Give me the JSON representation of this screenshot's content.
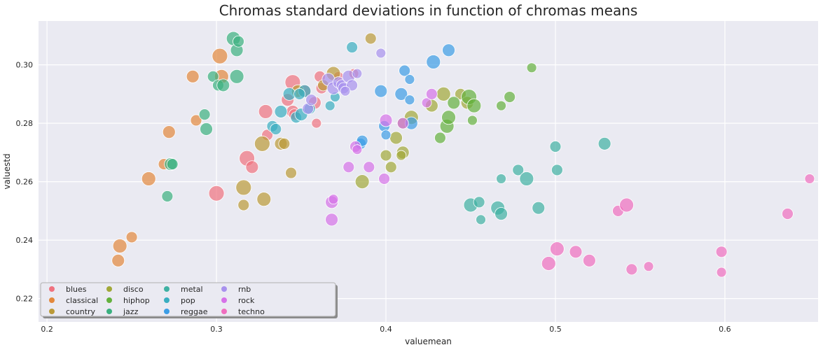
{
  "chart_data": {
    "type": "scatter",
    "title": "Chromas standard deviations in function of chromas means",
    "xlabel": "valuemean",
    "ylabel": "valuestd",
    "xlim": [
      0.195,
      0.655
    ],
    "ylim": [
      0.212,
      0.315
    ],
    "xticks": [
      0.2,
      0.3,
      0.4,
      0.5,
      0.6
    ],
    "yticks": [
      0.22,
      0.24,
      0.26,
      0.28,
      0.3
    ],
    "xtick_labels": [
      "0.2",
      "0.3",
      "0.4",
      "0.5",
      "0.6"
    ],
    "ytick_labels": [
      "0.22",
      "0.24",
      "0.26",
      "0.28",
      "0.30"
    ],
    "grid": true,
    "legend_position": "bottom-left",
    "legend_columns": 5,
    "series": [
      {
        "name": "blues",
        "color": "#f0727f",
        "points": [
          [
            0.3,
            0.256,
            11
          ],
          [
            0.318,
            0.268,
            11
          ],
          [
            0.321,
            0.265,
            9
          ],
          [
            0.329,
            0.284,
            10
          ],
          [
            0.33,
            0.276,
            8
          ],
          [
            0.342,
            0.288,
            9
          ],
          [
            0.345,
            0.294,
            11
          ],
          [
            0.345,
            0.284,
            9
          ],
          [
            0.352,
            0.291,
            9
          ],
          [
            0.358,
            0.287,
            9
          ],
          [
            0.359,
            0.28,
            7
          ],
          [
            0.361,
            0.296,
            8
          ],
          [
            0.362,
            0.292,
            8
          ],
          [
            0.381,
            0.297,
            7
          ],
          [
            0.372,
            0.296,
            7
          ],
          [
            0.346,
            0.283,
            8
          ]
        ]
      },
      {
        "name": "classical",
        "color": "#e3883c",
        "points": [
          [
            0.242,
            0.233,
            9
          ],
          [
            0.243,
            0.238,
            10
          ],
          [
            0.25,
            0.241,
            8
          ],
          [
            0.26,
            0.261,
            10
          ],
          [
            0.269,
            0.266,
            8
          ],
          [
            0.272,
            0.277,
            9
          ],
          [
            0.286,
            0.296,
            9
          ],
          [
            0.288,
            0.281,
            8
          ],
          [
            0.302,
            0.303,
            11
          ],
          [
            0.303,
            0.296,
            10
          ]
        ]
      },
      {
        "name": "country",
        "color": "#bb9a38",
        "points": [
          [
            0.316,
            0.258,
            11
          ],
          [
            0.316,
            0.252,
            8
          ],
          [
            0.327,
            0.273,
            11
          ],
          [
            0.328,
            0.254,
            10
          ],
          [
            0.338,
            0.273,
            9
          ],
          [
            0.344,
            0.263,
            8
          ],
          [
            0.348,
            0.291,
            9
          ],
          [
            0.363,
            0.293,
            8
          ],
          [
            0.391,
            0.309,
            8
          ],
          [
            0.369,
            0.297,
            10
          ],
          [
            0.34,
            0.273,
            8
          ]
        ]
      },
      {
        "name": "disco",
        "color": "#a1a838",
        "points": [
          [
            0.386,
            0.26,
            10
          ],
          [
            0.4,
            0.269,
            8
          ],
          [
            0.403,
            0.265,
            8
          ],
          [
            0.406,
            0.275,
            9
          ],
          [
            0.41,
            0.27,
            9
          ],
          [
            0.415,
            0.282,
            10
          ],
          [
            0.41,
            0.28,
            8
          ],
          [
            0.427,
            0.286,
            9
          ],
          [
            0.434,
            0.29,
            10
          ],
          [
            0.444,
            0.29,
            8
          ],
          [
            0.448,
            0.287,
            9
          ],
          [
            0.409,
            0.269,
            7
          ]
        ]
      },
      {
        "name": "hiphop",
        "color": "#64b13d",
        "points": [
          [
            0.432,
            0.275,
            8
          ],
          [
            0.436,
            0.279,
            10
          ],
          [
            0.437,
            0.282,
            10
          ],
          [
            0.44,
            0.287,
            9
          ],
          [
            0.449,
            0.289,
            11
          ],
          [
            0.452,
            0.286,
            10
          ],
          [
            0.451,
            0.281,
            7
          ],
          [
            0.468,
            0.286,
            7
          ],
          [
            0.473,
            0.289,
            8
          ],
          [
            0.486,
            0.299,
            7
          ]
        ]
      },
      {
        "name": "jazz",
        "color": "#3bb07f",
        "points": [
          [
            0.271,
            0.255,
            8
          ],
          [
            0.273,
            0.266,
            9
          ],
          [
            0.274,
            0.266,
            8
          ],
          [
            0.293,
            0.283,
            8
          ],
          [
            0.294,
            0.278,
            9
          ],
          [
            0.298,
            0.296,
            8
          ],
          [
            0.301,
            0.293,
            8
          ],
          [
            0.304,
            0.293,
            9
          ],
          [
            0.31,
            0.309,
            10
          ],
          [
            0.312,
            0.305,
            9
          ],
          [
            0.313,
            0.308,
            8
          ],
          [
            0.312,
            0.296,
            10
          ]
        ]
      },
      {
        "name": "metal",
        "color": "#3fb1a3",
        "points": [
          [
            0.45,
            0.252,
            10
          ],
          [
            0.455,
            0.253,
            8
          ],
          [
            0.456,
            0.247,
            7
          ],
          [
            0.466,
            0.251,
            10
          ],
          [
            0.468,
            0.261,
            7
          ],
          [
            0.468,
            0.249,
            9
          ],
          [
            0.478,
            0.264,
            8
          ],
          [
            0.483,
            0.261,
            10
          ],
          [
            0.49,
            0.251,
            9
          ],
          [
            0.5,
            0.272,
            8
          ],
          [
            0.501,
            0.264,
            8
          ],
          [
            0.529,
            0.273,
            9
          ]
        ]
      },
      {
        "name": "pop",
        "color": "#39aec0",
        "points": [
          [
            0.333,
            0.279,
            8
          ],
          [
            0.335,
            0.278,
            8
          ],
          [
            0.338,
            0.284,
            9
          ],
          [
            0.343,
            0.29,
            9
          ],
          [
            0.347,
            0.282,
            8
          ],
          [
            0.35,
            0.283,
            9
          ],
          [
            0.352,
            0.291,
            9
          ],
          [
            0.355,
            0.285,
            8
          ],
          [
            0.367,
            0.286,
            7
          ],
          [
            0.37,
            0.289,
            7
          ],
          [
            0.38,
            0.306,
            8
          ],
          [
            0.349,
            0.29,
            8
          ]
        ]
      },
      {
        "name": "reggae",
        "color": "#3c9de5",
        "points": [
          [
            0.385,
            0.273,
            8
          ],
          [
            0.386,
            0.274,
            8
          ],
          [
            0.397,
            0.291,
            9
          ],
          [
            0.399,
            0.279,
            8
          ],
          [
            0.4,
            0.276,
            7
          ],
          [
            0.409,
            0.29,
            9
          ],
          [
            0.411,
            0.298,
            8
          ],
          [
            0.414,
            0.295,
            7
          ],
          [
            0.414,
            0.288,
            7
          ],
          [
            0.415,
            0.28,
            9
          ],
          [
            0.428,
            0.301,
            10
          ],
          [
            0.437,
            0.305,
            9
          ]
        ]
      },
      {
        "name": "rnb",
        "color": "#a891ee",
        "points": [
          [
            0.354,
            0.285,
            8
          ],
          [
            0.356,
            0.288,
            8
          ],
          [
            0.366,
            0.295,
            9
          ],
          [
            0.369,
            0.292,
            9
          ],
          [
            0.372,
            0.294,
            8
          ],
          [
            0.374,
            0.293,
            8
          ],
          [
            0.375,
            0.292,
            8
          ],
          [
            0.378,
            0.296,
            9
          ],
          [
            0.38,
            0.293,
            8
          ],
          [
            0.383,
            0.297,
            7
          ],
          [
            0.397,
            0.304,
            7
          ],
          [
            0.376,
            0.291,
            7
          ]
        ]
      },
      {
        "name": "rock",
        "color": "#d672e8",
        "points": [
          [
            0.368,
            0.253,
            9
          ],
          [
            0.369,
            0.254,
            7
          ],
          [
            0.368,
            0.247,
            9
          ],
          [
            0.378,
            0.265,
            8
          ],
          [
            0.382,
            0.272,
            8
          ],
          [
            0.383,
            0.271,
            7
          ],
          [
            0.39,
            0.265,
            8
          ],
          [
            0.399,
            0.261,
            8
          ],
          [
            0.4,
            0.281,
            9
          ],
          [
            0.41,
            0.28,
            8
          ],
          [
            0.424,
            0.287,
            7
          ],
          [
            0.427,
            0.29,
            8
          ]
        ]
      },
      {
        "name": "techno",
        "color": "#f06ebf",
        "points": [
          [
            0.496,
            0.232,
            10
          ],
          [
            0.501,
            0.237,
            10
          ],
          [
            0.512,
            0.236,
            9
          ],
          [
            0.52,
            0.233,
            9
          ],
          [
            0.537,
            0.25,
            8
          ],
          [
            0.542,
            0.252,
            10
          ],
          [
            0.545,
            0.23,
            8
          ],
          [
            0.555,
            0.231,
            7
          ],
          [
            0.598,
            0.236,
            8
          ],
          [
            0.598,
            0.229,
            7
          ],
          [
            0.637,
            0.249,
            8
          ],
          [
            0.65,
            0.261,
            7
          ]
        ]
      }
    ]
  }
}
